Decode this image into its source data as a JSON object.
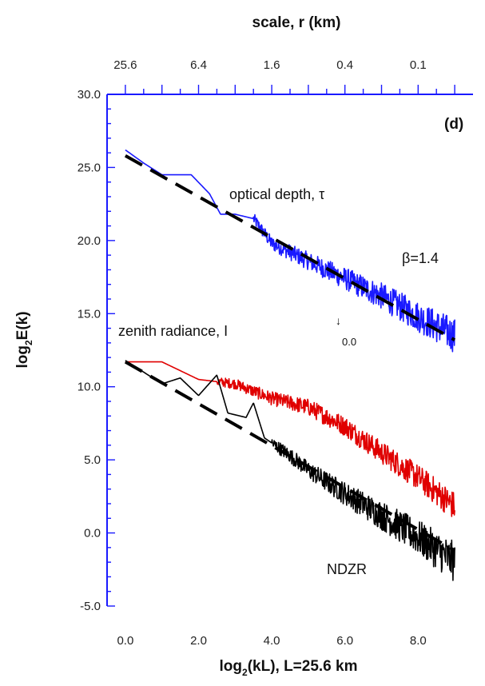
{
  "chart_data": {
    "type": "line",
    "panel_label": "(d)",
    "xlabel": {
      "main": "log",
      "sub": "2",
      "rest": "(kL),  L=25.6  km"
    },
    "ylabel": {
      "main": "log",
      "sub": "2",
      "rest": "E(k)"
    },
    "top_axis_title": "scale,  r  (km)",
    "xlim": [
      -0.5,
      9.5
    ],
    "ylim": [
      -5,
      30
    ],
    "x_ticks": [
      0,
      2,
      4,
      6,
      8
    ],
    "x_tick_labels": [
      "0.0",
      "2.0",
      "4.0",
      "6.0",
      "8.0"
    ],
    "y_ticks": [
      -5,
      0,
      5,
      10,
      15,
      20,
      25,
      30
    ],
    "y_tick_labels": [
      "-5.0",
      "0.0",
      "5.0",
      "10.0",
      "15.0",
      "20.0",
      "25.0",
      "30.0"
    ],
    "top_ticks": [
      0,
      2,
      4,
      6,
      8
    ],
    "top_tick_labels": [
      "25.6",
      "6.4",
      "1.6",
      "0.4",
      "0.1"
    ],
    "annotations": {
      "optical_depth": "optical depth, τ",
      "beta": "β=1.4",
      "zenith_main": "zenith radiance, I",
      "zenith_sup": "↓",
      "zenith_sub": "0.0",
      "ndzr": "NDZR"
    },
    "series": [
      {
        "name": "optical depth, τ",
        "color": "#1a1aff",
        "style": "noisy-spectrum",
        "points": [
          [
            0,
            26.2
          ],
          [
            0.5,
            25.3
          ],
          [
            1.0,
            24.5
          ],
          [
            1.8,
            24.5
          ],
          [
            2.3,
            23.2
          ],
          [
            2.6,
            21.8
          ],
          [
            3.0,
            21.8
          ],
          [
            3.5,
            21.5
          ],
          [
            4.0,
            19.8
          ],
          [
            5.0,
            18.6
          ],
          [
            6.0,
            17.4
          ],
          [
            7.0,
            16.2
          ],
          [
            8.0,
            14.8
          ],
          [
            9.0,
            13.5
          ]
        ],
        "noise_start": 3.5,
        "noise_amp": [
          0.4,
          1.2
        ]
      },
      {
        "name": "zenith radiance, I↓0.0",
        "color": "#e00000",
        "style": "noisy-spectrum",
        "points": [
          [
            0,
            11.7
          ],
          [
            1.0,
            11.7
          ],
          [
            2.0,
            10.5
          ],
          [
            3.0,
            10.2
          ],
          [
            4.0,
            9.2
          ],
          [
            5.0,
            8.6
          ],
          [
            6.0,
            7.3
          ],
          [
            7.0,
            5.5
          ],
          [
            8.0,
            3.8
          ],
          [
            9.0,
            1.8
          ]
        ],
        "noise_start": 2.5,
        "noise_amp": [
          0.3,
          1.0
        ]
      },
      {
        "name": "NDZR",
        "color": "#000000",
        "style": "noisy-spectrum",
        "points": [
          [
            0,
            11.8
          ],
          [
            0.5,
            11.0
          ],
          [
            1.0,
            10.2
          ],
          [
            1.5,
            10.6
          ],
          [
            2.0,
            9.4
          ],
          [
            2.5,
            10.8
          ],
          [
            2.8,
            8.2
          ],
          [
            3.3,
            7.9
          ],
          [
            3.5,
            8.9
          ],
          [
            3.8,
            6.5
          ],
          [
            4.5,
            5.3
          ],
          [
            5.0,
            4.3
          ],
          [
            6.0,
            2.7
          ],
          [
            7.0,
            1.2
          ],
          [
            8.0,
            -0.3
          ],
          [
            9.0,
            -2.0
          ]
        ],
        "noise_start": 4.0,
        "noise_amp": [
          0.4,
          1.4
        ]
      }
    ],
    "fits": [
      {
        "name": "fit β=1.4 (optical depth)",
        "color": "#000000",
        "dash": true,
        "points": [
          [
            0,
            25.8
          ],
          [
            9.0,
            13.2
          ]
        ]
      },
      {
        "name": "fit (NDZR)",
        "color": "#000000",
        "dash": true,
        "points": [
          [
            0,
            11.7
          ],
          [
            9.0,
            -1.2
          ]
        ]
      }
    ]
  }
}
